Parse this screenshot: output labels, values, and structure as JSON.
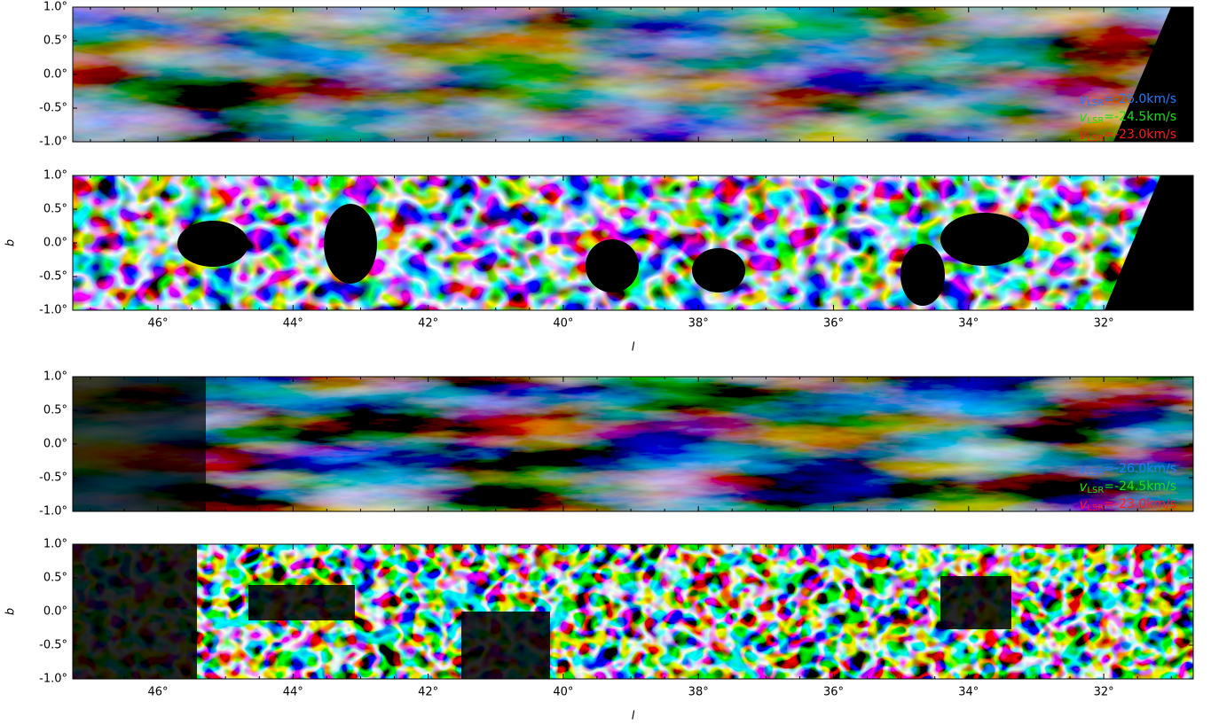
{
  "panels": [
    {
      "yticks": [
        "1.0°",
        "0.5°",
        "0.0°",
        "-0.5°",
        "-1.0°"
      ],
      "legend": [
        {
          "symbol": "v",
          "sub": "LSR",
          "text": "=-26.0km/s",
          "color": "#1f7cff"
        },
        {
          "symbol": "v",
          "sub": "LSR",
          "text": "=-24.5km/s",
          "color": "#18e018"
        },
        {
          "symbol": "v",
          "sub": "LSR",
          "text": "=-23.0km/s",
          "color": "#ff1a1a"
        }
      ]
    },
    {
      "yticks": [
        "1.0°",
        "0.5°",
        "0.0°",
        "-0.5°",
        "-1.0°"
      ],
      "ylabel": "b",
      "xticks": [
        "46°",
        "44°",
        "42°",
        "40°",
        "38°",
        "36°",
        "34°",
        "32°"
      ],
      "xlabel": "l"
    },
    {
      "yticks": [
        "1.0°",
        "0.5°",
        "0.0°",
        "-0.5°",
        "-1.0°"
      ],
      "legend": [
        {
          "symbol": "v",
          "sub": "LSR",
          "text": "=-26.0km/s",
          "color": "#1f7cff"
        },
        {
          "symbol": "v",
          "sub": "LSR",
          "text": "=-24.5km/s",
          "color": "#18e018"
        },
        {
          "symbol": "v",
          "sub": "LSR",
          "text": "=-23.0km/s",
          "color": "#ff1a1a"
        }
      ]
    },
    {
      "yticks": [
        "1.0°",
        "0.5°",
        "0.0°",
        "-0.5°",
        "-1.0°"
      ],
      "ylabel": "b",
      "xticks": [
        "46°",
        "44°",
        "42°",
        "40°",
        "38°",
        "36°",
        "34°",
        "32°"
      ],
      "xlabel": "l"
    }
  ]
}
